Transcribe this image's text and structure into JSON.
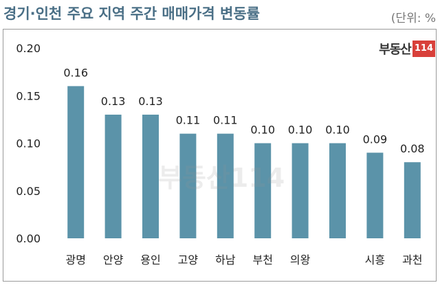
{
  "header": {
    "title": "경기·인천 주요 지역 주간 매매가격 변동률",
    "unit": "(단위: %"
  },
  "logo": {
    "text": "부동산",
    "num": "114"
  },
  "colors": {
    "bar": "#5b93a9",
    "title": "#4a6f86"
  },
  "chart_data": {
    "type": "bar",
    "title": "경기·인천 주요 지역 주간 매매가격 변동률",
    "ylabel": "",
    "xlabel": "",
    "unit": "(단위: %",
    "ylim": [
      0,
      0.2
    ],
    "yticks": [
      "0.00",
      "0.05",
      "0.10",
      "0.15",
      "0.20"
    ],
    "categories": [
      "광명",
      "안양",
      "용인",
      "고양",
      "하남",
      "부천",
      "의왕",
      "",
      "시흥",
      "과천"
    ],
    "values": [
      0.16,
      0.13,
      0.13,
      0.11,
      0.11,
      0.1,
      0.1,
      0.1,
      0.09,
      0.08
    ],
    "labels": [
      "0.16",
      "0.13",
      "0.13",
      "0.11",
      "0.11",
      "0.10",
      "0.10",
      "0.10",
      "0.09",
      "0.08"
    ],
    "grid": false,
    "legend": "none"
  }
}
